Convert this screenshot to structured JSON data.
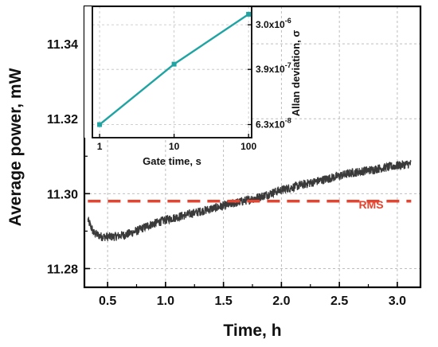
{
  "chart_data": [
    {
      "type": "line",
      "xlabel": "Time, h",
      "ylabel": "Average power, mW",
      "xlim": [
        0.3,
        3.2
      ],
      "ylim": [
        11.275,
        11.35
      ],
      "x_ticks": [
        "0.5",
        "1.0",
        "1.5",
        "2.0",
        "2.5",
        "3.0"
      ],
      "y_ticks": [
        "11.28",
        "11.30",
        "11.32",
        "11.34"
      ],
      "grid": true,
      "series": [
        {
          "color": "#3a3a3a",
          "noisy": true,
          "x": [
            0.33,
            0.38,
            0.45,
            0.55,
            0.65,
            0.75,
            0.85,
            1.0,
            1.2,
            1.4,
            1.6,
            1.8,
            2.0,
            2.2,
            2.4,
            2.6,
            2.8,
            3.0,
            3.12
          ],
          "values": [
            11.293,
            11.2895,
            11.2885,
            11.2885,
            11.289,
            11.29,
            11.2915,
            11.293,
            11.2945,
            11.296,
            11.2975,
            11.299,
            11.301,
            11.3025,
            11.304,
            11.3055,
            11.3065,
            11.3075,
            11.308
          ]
        },
        {
          "name": "RMS",
          "color": "#e8432e",
          "style": "dashed",
          "x": [
            0.33,
            3.12
          ],
          "values": [
            11.298,
            11.298
          ]
        }
      ],
      "annotations": [
        "RMS"
      ]
    },
    {
      "type": "line",
      "inset": true,
      "xlabel": "Gate time, s",
      "ylabel": "Allan deviation, σ",
      "x_scale": "log",
      "xlim": [
        0.8,
        110
      ],
      "x_ticks": [
        "1",
        "10",
        "100"
      ],
      "y_ticks": [
        {
          "base": "6.3x10",
          "exp": "-8"
        },
        {
          "base": "3.9x10",
          "exp": "-7"
        },
        {
          "base": "3.0x10",
          "exp": "-6"
        }
      ],
      "color": "#1fa3a3",
      "x": [
        1,
        10,
        100
      ],
      "values": [
        0.1,
        0.56,
        0.94
      ]
    }
  ]
}
